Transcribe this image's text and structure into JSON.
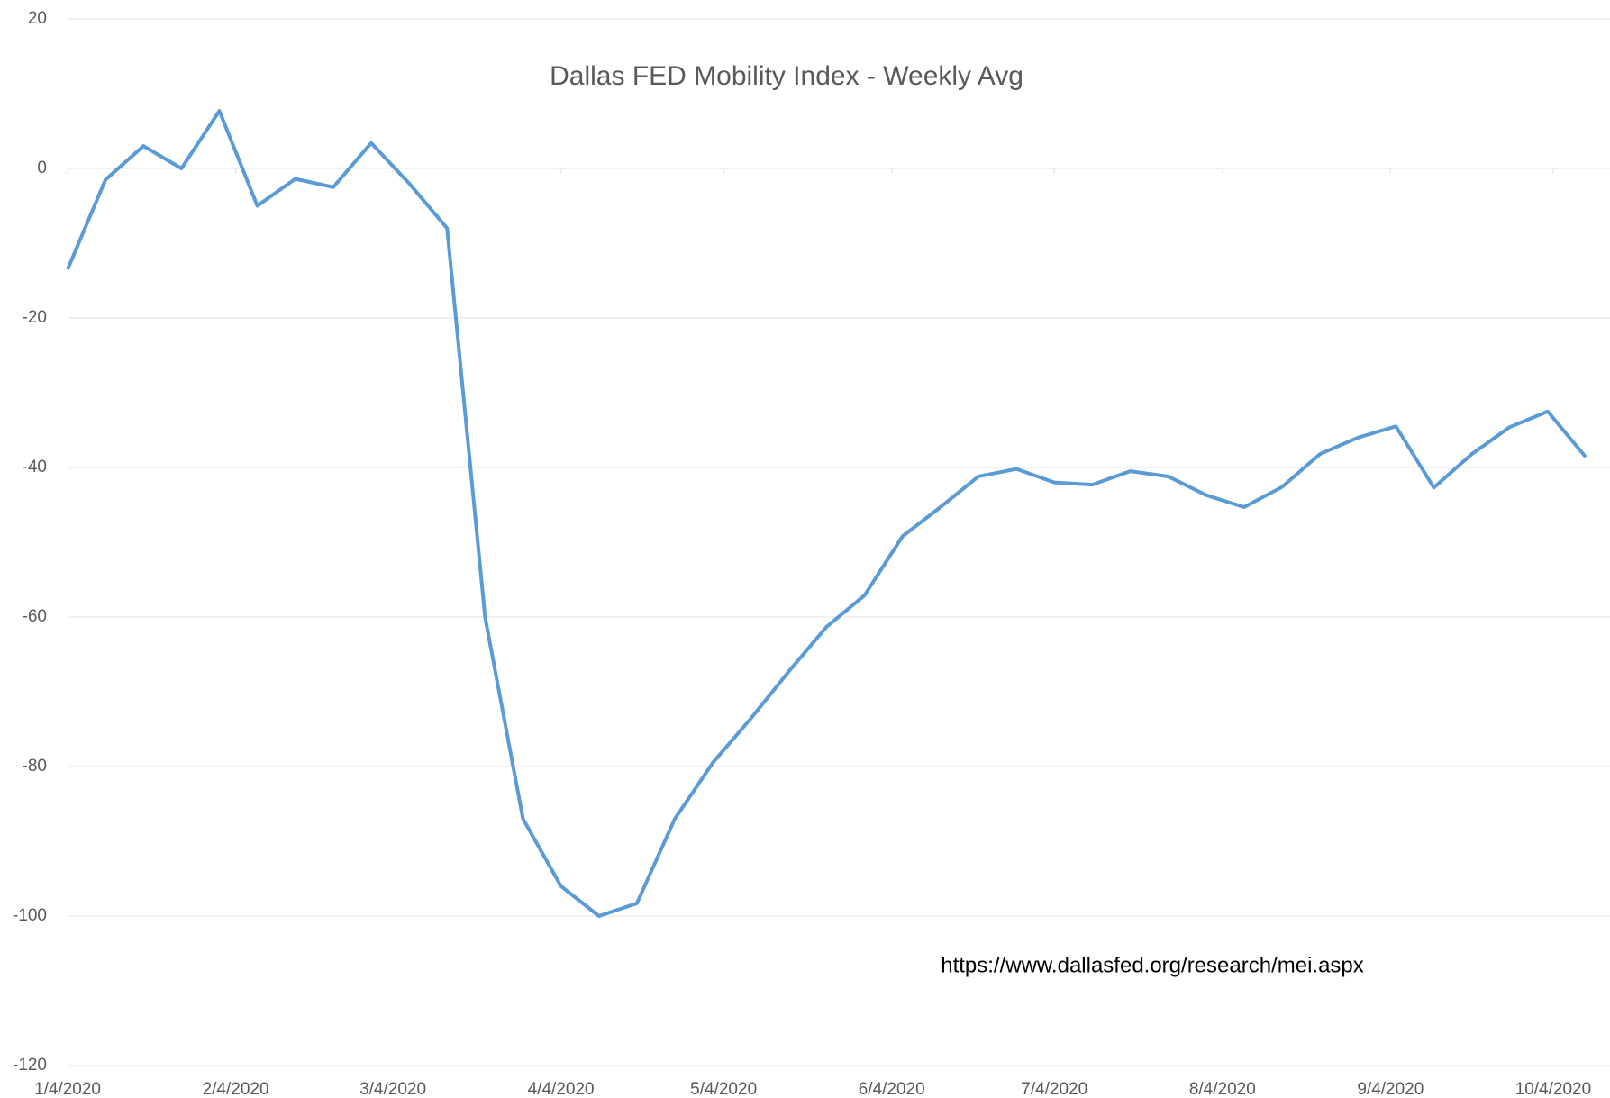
{
  "chart_data": {
    "type": "line",
    "title": "Dallas FED Mobility Index - Weekly Avg",
    "annotation": "https://www.dallasfed.org/research/mei.aspx",
    "x": [
      "1/4/2020",
      "1/11/2020",
      "1/18/2020",
      "1/25/2020",
      "2/1/2020",
      "2/8/2020",
      "2/15/2020",
      "2/22/2020",
      "2/29/2020",
      "3/7/2020",
      "3/14/2020",
      "3/21/2020",
      "3/28/2020",
      "4/4/2020",
      "4/11/2020",
      "4/18/2020",
      "4/25/2020",
      "5/2/2020",
      "5/9/2020",
      "5/16/2020",
      "5/23/2020",
      "5/30/2020",
      "6/6/2020",
      "6/13/2020",
      "6/20/2020",
      "6/27/2020",
      "7/4/2020",
      "7/11/2020",
      "7/18/2020",
      "7/25/2020",
      "8/1/2020",
      "8/8/2020",
      "8/15/2020",
      "8/22/2020",
      "8/29/2020",
      "9/5/2020",
      "9/12/2020",
      "9/19/2020",
      "9/26/2020",
      "10/3/2020",
      "10/10/2020"
    ],
    "series": [
      {
        "name": "Mobility Index",
        "color": "#5b9bd5",
        "values": [
          -13.5,
          -1.5,
          3,
          0,
          7.7,
          -5,
          -1.4,
          -2.5,
          3.4,
          -2,
          -8,
          -60,
          -87,
          -96,
          -100,
          -98.3,
          -87,
          -79.5,
          -73.6,
          -67.3,
          -61.3,
          -57.1,
          -49.2,
          -45.3,
          -41.2,
          -40.2,
          -42,
          -42.3,
          -40.5,
          -41.2,
          -43.7,
          -45.3,
          -42.6,
          -38.2,
          -36,
          -34.5,
          -42.7,
          -38.2,
          -34.6,
          -32.5,
          -38.6
        ]
      }
    ],
    "xlim": [
      "1/4/2020",
      "10/10/2020"
    ],
    "xticks": [
      "1/4/2020",
      "2/4/2020",
      "3/4/2020",
      "4/4/2020",
      "5/4/2020",
      "6/4/2020",
      "7/4/2020",
      "8/4/2020",
      "9/4/2020",
      "10/4/2020"
    ],
    "ylim": [
      -120,
      20
    ],
    "yticks": [
      -120,
      -100,
      -80,
      -60,
      -40,
      -20,
      0,
      20
    ],
    "grid": true
  }
}
